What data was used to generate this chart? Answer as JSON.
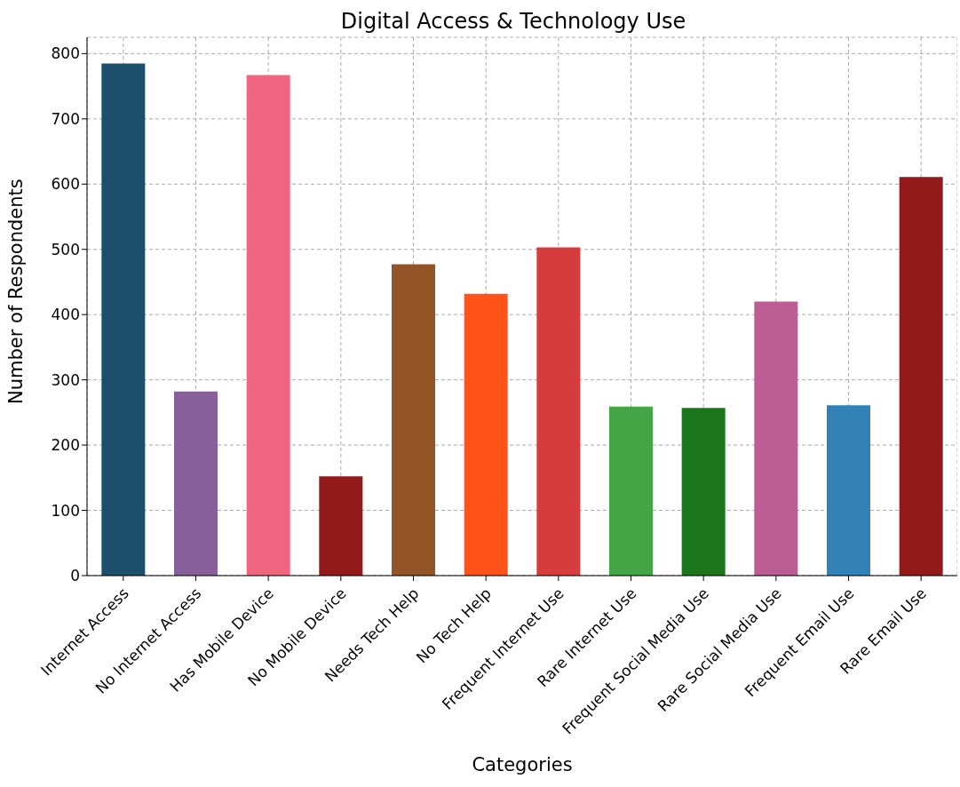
{
  "chart_data": {
    "type": "bar",
    "title": "Digital Access & Technology Use",
    "xlabel": "Categories",
    "ylabel": "Number of Respondents",
    "categories": [
      "Internet Access",
      "No Internet Access",
      "Has Mobile Device",
      "No Mobile Device",
      "Needs Tech Help",
      "No Tech Help",
      "Frequent Internet Use",
      "Rare Internet Use",
      "Frequent Social Media Use",
      "Rare Social Media Use",
      "Frequent Email Use",
      "Rare Email Use"
    ],
    "values": [
      785,
      282,
      767,
      152,
      477,
      432,
      503,
      259,
      257,
      420,
      261,
      611
    ],
    "colors": [
      "#1b4f6b",
      "#875f9a",
      "#f06681",
      "#931a1a",
      "#935428",
      "#ff5319",
      "#d73c3c",
      "#43a546",
      "#1b761b",
      "#bd5d96",
      "#3282b8",
      "#931a1a"
    ],
    "ylim": [
      0,
      825
    ],
    "yticks": [
      0,
      100,
      200,
      300,
      400,
      500,
      600,
      700,
      800
    ],
    "grid": true
  }
}
